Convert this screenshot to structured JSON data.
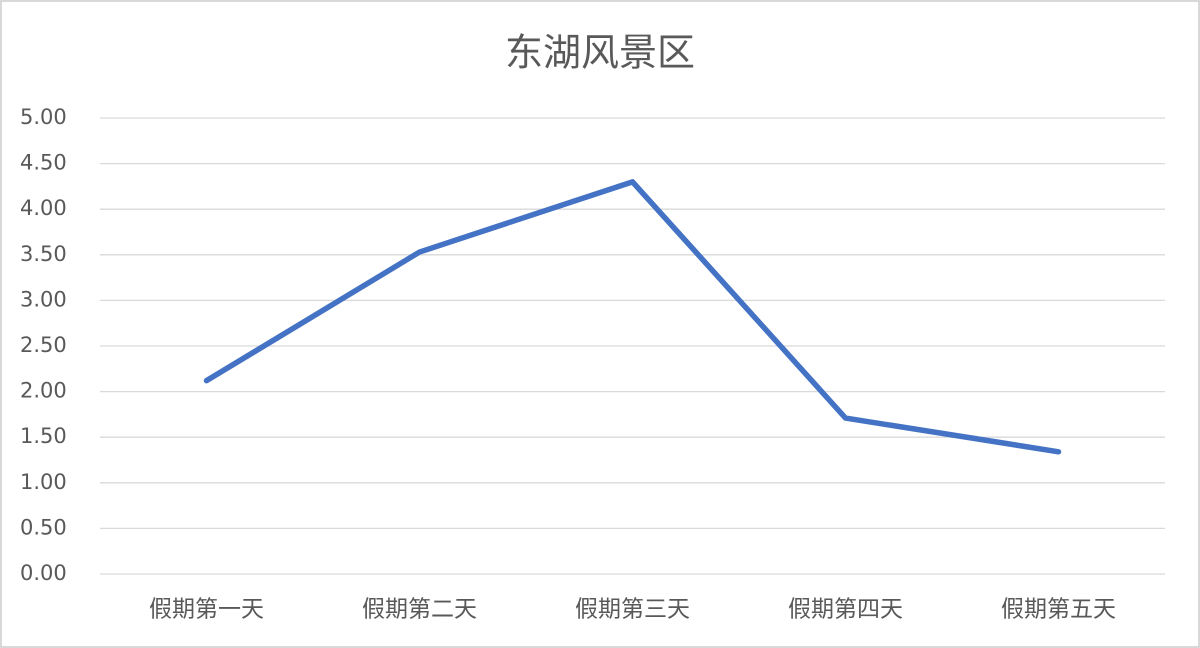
{
  "chart_data": {
    "type": "line",
    "title": "东湖风景区",
    "categories": [
      "假期第一天",
      "假期第二天",
      "假期第三天",
      "假期第四天",
      "假期第五天"
    ],
    "values": [
      2.12,
      3.53,
      4.3,
      1.71,
      1.34
    ],
    "color": "#4472c4",
    "ylim": [
      0,
      5
    ],
    "yticks": [
      {
        "value": 0,
        "label": "0.00"
      },
      {
        "value": 0.5,
        "label": "0.50"
      },
      {
        "value": 1,
        "label": "1.00"
      },
      {
        "value": 1.5,
        "label": "1.50"
      },
      {
        "value": 2,
        "label": "2.00"
      },
      {
        "value": 2.5,
        "label": "2.50"
      },
      {
        "value": 3,
        "label": "3.00"
      },
      {
        "value": 3.5,
        "label": "3.50"
      },
      {
        "value": 4,
        "label": "4.00"
      },
      {
        "value": 4.5,
        "label": "4.50"
      },
      {
        "value": 5,
        "label": "5.00"
      }
    ],
    "grid": true
  }
}
